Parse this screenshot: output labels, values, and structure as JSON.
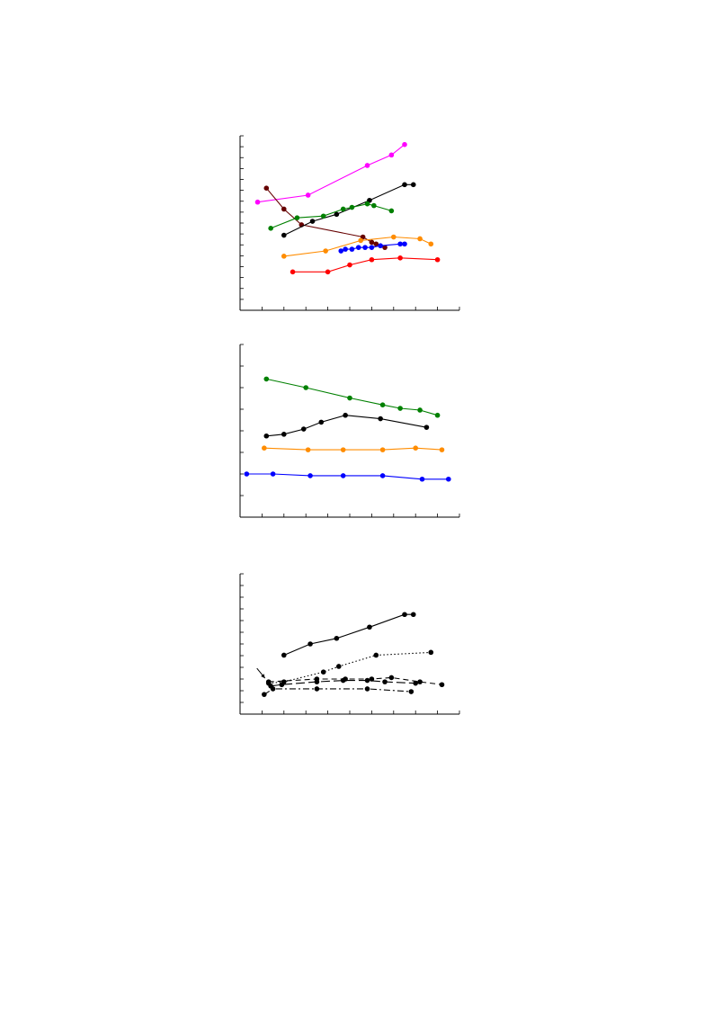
{
  "page": {
    "background": "#ffffff"
  },
  "chart_data": [
    {
      "id": "panel-top",
      "type": "line",
      "title": "",
      "xlabel": "",
      "ylabel": "",
      "grid": false,
      "legend": "none",
      "xlim": [
        0,
        100
      ],
      "ylim": [
        0,
        100
      ],
      "xticks": 11,
      "yticks": 17,
      "series": [
        {
          "color": "#ff00ff",
          "style": "solid",
          "x": [
            8,
            31,
            58,
            69,
            75
          ],
          "y": [
            62,
            66,
            83,
            89,
            95
          ]
        },
        {
          "color": "#660000",
          "style": "solid",
          "x": [
            12,
            20,
            28,
            56,
            60,
            62,
            66
          ],
          "y": [
            70,
            58,
            49,
            42,
            39,
            38,
            36
          ]
        },
        {
          "color": "#000000",
          "style": "solid",
          "x": [
            20,
            33,
            44,
            59,
            75,
            79
          ],
          "y": [
            43,
            51,
            55,
            63,
            72,
            72
          ]
        },
        {
          "color": "#008000",
          "style": "solid",
          "x": [
            14,
            26,
            38,
            47,
            51,
            58,
            61,
            69
          ],
          "y": [
            47,
            53,
            54,
            58,
            59,
            61,
            60,
            57
          ]
        },
        {
          "color": "#ff8c00",
          "style": "solid",
          "x": [
            20,
            39,
            55,
            70,
            82,
            87
          ],
          "y": [
            31,
            34,
            40,
            42,
            41,
            38
          ]
        },
        {
          "color": "#0000ff",
          "style": "solid",
          "x": [
            46,
            48,
            51,
            54,
            57,
            60,
            64,
            73,
            75
          ],
          "y": [
            34,
            35,
            35,
            36,
            36,
            36,
            37,
            38,
            38
          ]
        },
        {
          "color": "#ff0000",
          "style": "solid",
          "x": [
            24,
            40,
            50,
            60,
            73,
            90
          ],
          "y": [
            22,
            22,
            26,
            29,
            30,
            29
          ]
        }
      ]
    },
    {
      "id": "panel-middle",
      "type": "line",
      "title": "",
      "xlabel": "",
      "ylabel": "",
      "grid": false,
      "legend": "none",
      "xlim": [
        0,
        100
      ],
      "ylim": [
        0,
        100
      ],
      "xticks": 11,
      "yticks": 9,
      "series": [
        {
          "color": "#008000",
          "style": "solid",
          "x": [
            12,
            30,
            50,
            65,
            73,
            82,
            90
          ],
          "y": [
            80,
            75,
            69,
            65,
            63,
            62,
            59
          ]
        },
        {
          "color": "#000000",
          "style": "solid",
          "x": [
            12,
            20,
            29,
            37,
            48,
            64,
            85
          ],
          "y": [
            47,
            48,
            51,
            55,
            59,
            57,
            52
          ]
        },
        {
          "color": "#ff8c00",
          "style": "solid",
          "x": [
            11,
            31,
            47,
            65,
            80,
            92
          ],
          "y": [
            40,
            39,
            39,
            39,
            40,
            39
          ]
        },
        {
          "color": "#0000ff",
          "style": "solid",
          "x": [
            3,
            15,
            32,
            47,
            65,
            83,
            95
          ],
          "y": [
            25,
            25,
            24,
            24,
            24,
            22,
            22
          ]
        }
      ]
    },
    {
      "id": "panel-bottom",
      "type": "line",
      "title": "",
      "xlabel": "",
      "ylabel": "",
      "grid": false,
      "legend": "none",
      "xlim": [
        0,
        100
      ],
      "ylim": [
        0,
        100
      ],
      "xticks": 11,
      "yticks": 13,
      "series": [
        {
          "color": "#000000",
          "style": "solid",
          "x": [
            20,
            32,
            44,
            59,
            75,
            79
          ],
          "y": [
            42,
            50,
            54,
            62,
            71,
            71
          ]
        },
        {
          "color": "#000000",
          "style": "dotted",
          "x": [
            13,
            20,
            38,
            45,
            62,
            87
          ],
          "y": [
            22,
            23,
            30,
            34,
            42,
            44
          ]
        },
        {
          "color": "#000000",
          "style": "dashed",
          "x": [
            13,
            35,
            48,
            60,
            69,
            82,
            92
          ],
          "y": [
            23,
            25,
            25,
            25,
            26,
            23,
            21
          ]
        },
        {
          "color": "#000000",
          "style": "dashdot",
          "x": [
            11,
            15,
            35,
            58,
            78
          ],
          "y": [
            14,
            18,
            18,
            18,
            16
          ]
        },
        {
          "color": "#000000",
          "style": "longdash",
          "x": [
            14,
            19,
            35,
            47,
            58,
            66,
            80
          ],
          "y": [
            20,
            21,
            23,
            24,
            24,
            23,
            22
          ]
        }
      ],
      "annotations": [
        {
          "type": "arrow",
          "points_to": [
            13,
            23
          ]
        }
      ]
    }
  ]
}
